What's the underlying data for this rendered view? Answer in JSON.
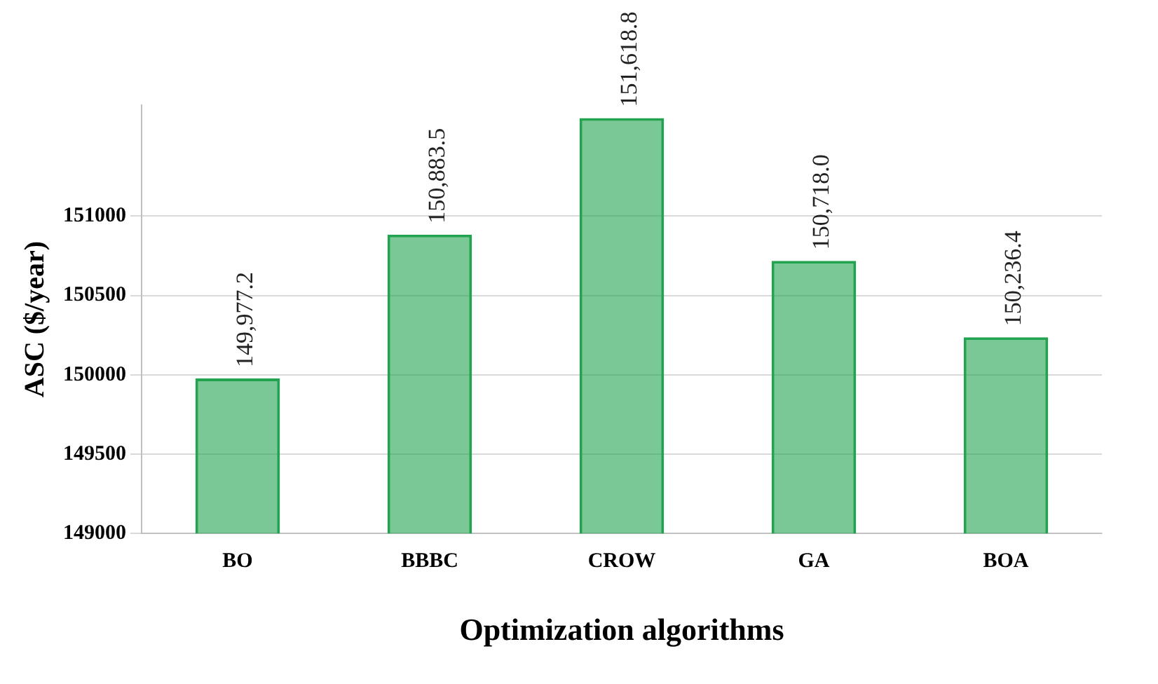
{
  "chart_data": {
    "type": "bar",
    "xlabel": "Optimization algorithms",
    "ylabel": "ASC ($/year)",
    "categories": [
      "BO",
      "BBBC",
      "CROW",
      "GA",
      "BOA"
    ],
    "values": [
      149977.2,
      150883.5,
      151618.8,
      150718.0,
      150236.4
    ],
    "value_labels": [
      "149,977.2",
      "150,883.5",
      "151,618.8",
      "150,718.0",
      "150,236.4"
    ],
    "color": "#22a34f",
    "ylim": [
      149000,
      151700
    ],
    "yticks": [
      149000,
      149500,
      150000,
      150500,
      151000
    ],
    "grid": "y",
    "legend": false
  }
}
